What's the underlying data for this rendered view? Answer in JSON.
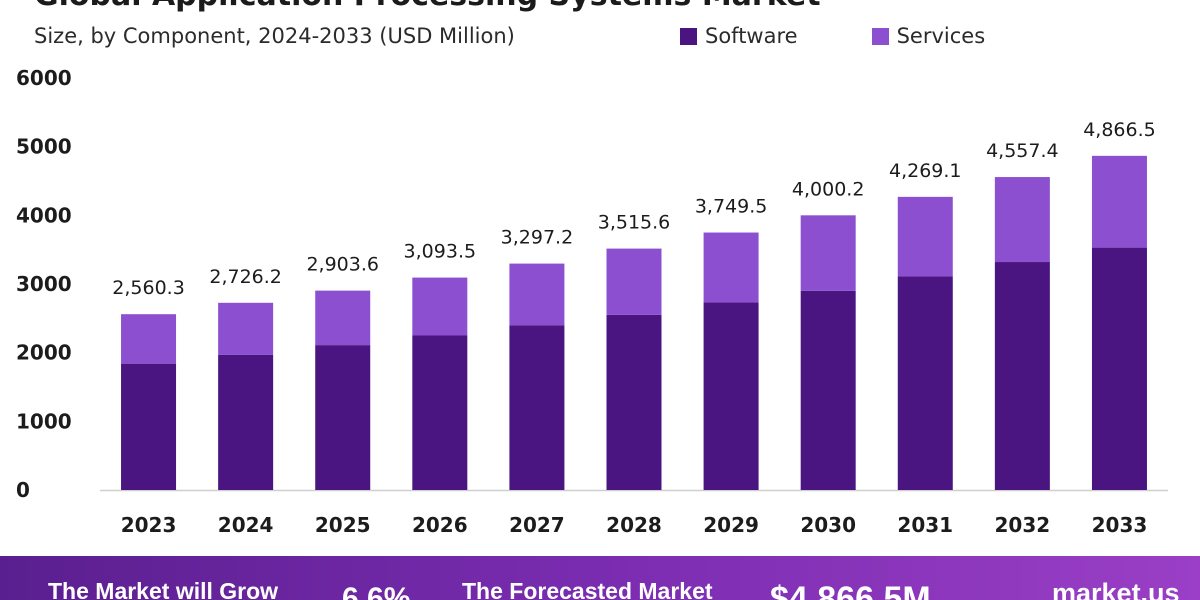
{
  "header": {
    "title": "Global Application Processing Systems Market",
    "subtitle": "Size, by Component, 2024-2033 (USD Million)"
  },
  "legend": [
    {
      "label": "Software",
      "color": "#4a1580"
    },
    {
      "label": "Services",
      "color": "#8c4fcf"
    }
  ],
  "footer": {
    "grow_label": "The Market will Grow",
    "cagr": "6.6%",
    "forecast_label": "The Forecasted Market",
    "forecast_value": "$4,866.5M",
    "market_label": "market.us"
  },
  "chart_data": {
    "type": "bar",
    "stacked": true,
    "title": "Global Application Processing Systems Market",
    "subtitle": "Size, by Component, 2024-2033 (USD Million)",
    "categories": [
      "2023",
      "2024",
      "2025",
      "2026",
      "2027",
      "2028",
      "2029",
      "2030",
      "2031",
      "2032",
      "2033"
    ],
    "totals": [
      "2,560.3",
      "2,726.2",
      "2,903.6",
      "3,093.5",
      "3,297.2",
      "3,515.6",
      "3,749.5",
      "4,000.2",
      "4,269.1",
      "4,557.4",
      "4,866.5"
    ],
    "series": [
      {
        "name": "Software",
        "color": "#4a1580",
        "values": [
          1840,
          1970,
          2110,
          2250,
          2400,
          2550,
          2730,
          2900,
          3110,
          3320,
          3530
        ]
      },
      {
        "name": "Services",
        "color": "#8c4fcf",
        "values": [
          720.3,
          756.2,
          793.6,
          843.5,
          897.2,
          965.6,
          1019.5,
          1100.2,
          1159.1,
          1237.4,
          1336.5
        ]
      }
    ],
    "yticks": [
      0,
      1000,
      2000,
      3000,
      4000,
      5000,
      6000
    ],
    "ylim": [
      0,
      6000
    ],
    "legend_position": "top-right",
    "grid": false
  }
}
